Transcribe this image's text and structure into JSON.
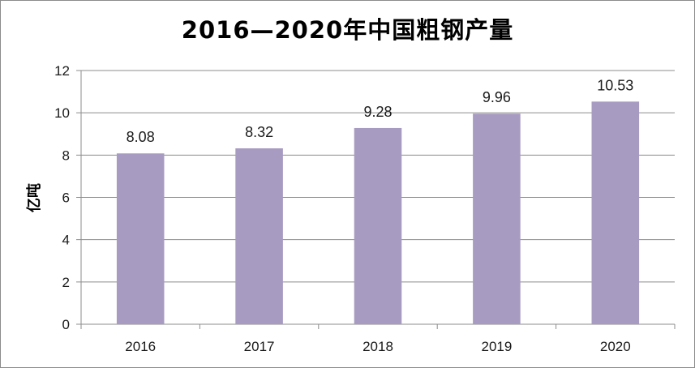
{
  "chart_data": {
    "type": "bar",
    "title": "2016—2020年中国粗钢产量",
    "xlabel": "",
    "ylabel": "亿吨",
    "categories": [
      "2016",
      "2017",
      "2018",
      "2019",
      "2020"
    ],
    "values": [
      8.08,
      8.32,
      9.28,
      9.96,
      10.53
    ],
    "value_labels": [
      "8.08",
      "8.32",
      "9.28",
      "9.96",
      "10.53"
    ],
    "ylim": [
      0,
      12
    ],
    "yticks": [
      0,
      2,
      4,
      6,
      8,
      10,
      12
    ],
    "grid": true,
    "legend": "none",
    "bar_color": "#a89bc2",
    "grid_color": "#8c8c8c"
  }
}
